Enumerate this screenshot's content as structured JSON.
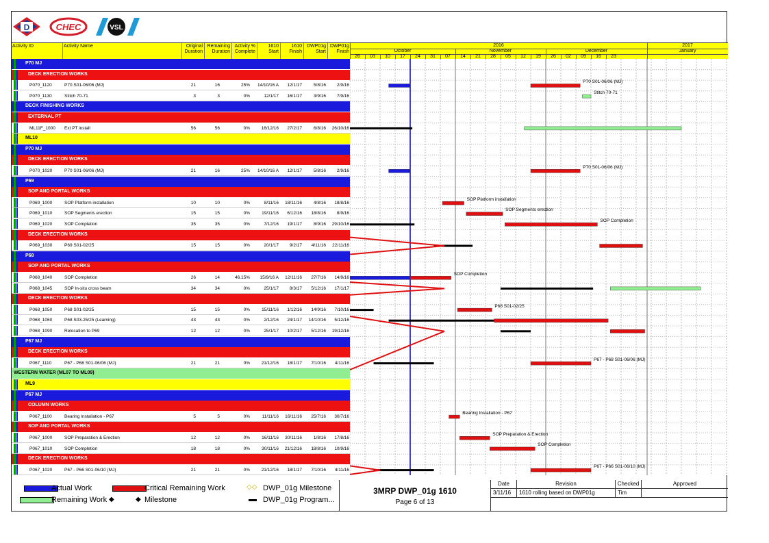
{
  "logos": {
    "d": "D",
    "hec": "CHEC",
    "vsl": "VSL"
  },
  "columns": {
    "activity_id": "Activity ID",
    "activity_name": "Activity Name",
    "orig_dur": [
      "Original",
      "Duration"
    ],
    "rem_dur": [
      "Remaining",
      "Duration"
    ],
    "pct": [
      "Activity %",
      "Complete"
    ],
    "s1610": [
      "1610",
      "Start"
    ],
    "f1610": [
      "1610",
      "Finish"
    ],
    "sdwp": [
      "DWP01g",
      "Start"
    ],
    "fdwp": [
      "DWP01g",
      "Finish"
    ]
  },
  "timescale": {
    "years": [
      "2016",
      "2017"
    ],
    "months": [
      "October",
      "November",
      "December",
      "January"
    ],
    "weeks": [
      "26",
      "03",
      "10",
      "17",
      "24",
      "31",
      "07",
      "14",
      "21",
      "28",
      "05",
      "12",
      "19",
      "26",
      "02",
      "09",
      "16",
      "23"
    ]
  },
  "colors": {
    "actual": "#1a1adc",
    "critical": "#e01010",
    "remaining": "#90ee90",
    "program": "#000000",
    "wbs_blue": "#1a1adc",
    "wbs_red": "#ee1111",
    "wbs_yellow": "#ffff00",
    "wbs_green": "#90ee90",
    "data_date": "#0000cc"
  },
  "rows": [
    {
      "type": "wbs",
      "color": "blue",
      "label": "P70 MJ"
    },
    {
      "type": "wbs",
      "color": "red",
      "label": "DECK ERECTION WORKS"
    },
    {
      "type": "act",
      "id": "P070_1120",
      "name": "P70 S01-06/06 (MJ)",
      "od": "21",
      "rd": "16",
      "pct": "25%",
      "s1610": "14/10/16 A",
      "f1610": "12/1/17",
      "sdwp": "5/8/16",
      "fdwp": "2/9/16"
    },
    {
      "type": "act",
      "id": "P070_1130",
      "name": "Stitch 70-71",
      "od": "3",
      "rd": "3",
      "pct": "0%",
      "s1610": "12/1/17",
      "f1610": "16/1/17",
      "sdwp": "3/9/16",
      "fdwp": "7/9/16"
    },
    {
      "type": "wbs",
      "color": "blue",
      "label": "DECK FINISHING WORKS"
    },
    {
      "type": "wbs",
      "color": "red",
      "label": "EXTERNAL PT"
    },
    {
      "type": "act",
      "id": "ML11F_1000",
      "name": "Ext PT install",
      "od": "56",
      "rd": "56",
      "pct": "0%",
      "s1610": "16/12/16",
      "f1610": "27/2/17",
      "sdwp": "6/8/16",
      "fdwp": "26/10/16"
    },
    {
      "type": "wbs",
      "color": "yellow",
      "label": "ML10"
    },
    {
      "type": "wbs",
      "color": "blue",
      "label": "P70 MJ"
    },
    {
      "type": "wbs",
      "color": "red",
      "label": "DECK ERECTION WORKS"
    },
    {
      "type": "act",
      "id": "P070_1020",
      "name": "P70 S01-06/06 (MJ)",
      "od": "21",
      "rd": "16",
      "pct": "25%",
      "s1610": "14/10/16 A",
      "f1610": "12/1/17",
      "sdwp": "5/8/16",
      "fdwp": "2/9/16"
    },
    {
      "type": "wbs",
      "color": "blue",
      "label": "P69"
    },
    {
      "type": "wbs",
      "color": "red",
      "label": "SOP AND PORTAL WORKS"
    },
    {
      "type": "act",
      "id": "P069_1000",
      "name": "SOP Platform installation",
      "od": "10",
      "rd": "10",
      "pct": "0%",
      "s1610": "8/11/16",
      "f1610": "18/11/16",
      "sdwp": "4/8/16",
      "fdwp": "18/8/16"
    },
    {
      "type": "act",
      "id": "P069_1010",
      "name": "SOP Segments erection",
      "od": "15",
      "rd": "15",
      "pct": "0%",
      "s1610": "19/11/16",
      "f1610": "6/12/16",
      "sdwp": "18/8/16",
      "fdwp": "8/9/16"
    },
    {
      "type": "act",
      "id": "P069_1020",
      "name": "SOP Completion",
      "od": "35",
      "rd": "35",
      "pct": "0%",
      "s1610": "7/12/16",
      "f1610": "19/1/17",
      "sdwp": "8/9/16",
      "fdwp": "29/10/16"
    },
    {
      "type": "wbs",
      "color": "red",
      "label": "DECK ERECTION WORKS"
    },
    {
      "type": "act",
      "id": "P069_1030",
      "name": "P69 S01-02/25",
      "od": "15",
      "rd": "15",
      "pct": "0%",
      "s1610": "20/1/17",
      "f1610": "9/2/17",
      "sdwp": "4/11/16",
      "fdwp": "22/11/16"
    },
    {
      "type": "wbs",
      "color": "blue",
      "label": "P68"
    },
    {
      "type": "wbs",
      "color": "red",
      "label": "SOP AND PORTAL WORKS"
    },
    {
      "type": "act",
      "id": "P068_1040",
      "name": "SOP Completion",
      "od": "26",
      "rd": "14",
      "pct": "46.15%",
      "s1610": "15/9/16 A",
      "f1610": "12/11/16",
      "sdwp": "27/7/16",
      "fdwp": "14/9/16"
    },
    {
      "type": "act",
      "id": "P068_1045",
      "name": "SOP In-situ cross beam",
      "od": "34",
      "rd": "34",
      "pct": "0%",
      "s1610": "25/1/17",
      "f1610": "8/3/17",
      "sdwp": "5/12/16",
      "fdwp": "17/1/17"
    },
    {
      "type": "wbs",
      "color": "red",
      "label": "DECK ERECTION WORKS"
    },
    {
      "type": "act",
      "id": "P068_1050",
      "name": "P68 S01-02/25",
      "od": "15",
      "rd": "15",
      "pct": "0%",
      "s1610": "15/11/16",
      "f1610": "1/12/16",
      "sdwp": "14/9/16",
      "fdwp": "7/10/16"
    },
    {
      "type": "act",
      "id": "P068_1060",
      "name": "P68 S03-25/25 (Learning)",
      "od": "43",
      "rd": "43",
      "pct": "0%",
      "s1610": "2/12/16",
      "f1610": "24/1/17",
      "sdwp": "14/10/16",
      "fdwp": "5/12/16"
    },
    {
      "type": "act",
      "id": "P068_1090",
      "name": "Relocation to P69",
      "od": "12",
      "rd": "12",
      "pct": "0%",
      "s1610": "25/1/17",
      "f1610": "10/2/17",
      "sdwp": "5/12/16",
      "fdwp": "19/12/16"
    },
    {
      "type": "wbs",
      "color": "blue",
      "label": "P67 MJ"
    },
    {
      "type": "wbs",
      "color": "red",
      "label": "DECK ERECTION WORKS"
    },
    {
      "type": "act",
      "id": "P067_1110",
      "name": "P67 - P68 S01-06/06 (MJ)",
      "od": "21",
      "rd": "21",
      "pct": "0%",
      "s1610": "21/12/16",
      "f1610": "18/1/17",
      "sdwp": "7/10/16",
      "fdwp": "4/11/16"
    },
    {
      "type": "wbs",
      "color": "green",
      "label": "WESTERN WATER (ML07 TO ML09)"
    },
    {
      "type": "wbs",
      "color": "yellow",
      "label": "ML9"
    },
    {
      "type": "wbs",
      "color": "blue",
      "label": "P67 MJ"
    },
    {
      "type": "wbs",
      "color": "red",
      "label": "COLUMN WORKS"
    },
    {
      "type": "act",
      "id": "P067_1100",
      "name": "Bearing Installation - P67",
      "od": "5",
      "rd": "5",
      "pct": "0%",
      "s1610": "11/11/16",
      "f1610": "16/11/16",
      "sdwp": "25/7/16",
      "fdwp": "30/7/16"
    },
    {
      "type": "wbs",
      "color": "red",
      "label": "SOP AND PORTAL WORKS"
    },
    {
      "type": "act",
      "id": "P067_1000",
      "name": "SOP Preparation & Erection",
      "od": "12",
      "rd": "12",
      "pct": "0%",
      "s1610": "16/11/16",
      "f1610": "30/11/16",
      "sdwp": "1/8/16",
      "fdwp": "17/8/16"
    },
    {
      "type": "act",
      "id": "P067_1010",
      "name": "SOP Completion",
      "od": "18",
      "rd": "18",
      "pct": "0%",
      "s1610": "30/11/16",
      "f1610": "21/12/16",
      "sdwp": "18/8/16",
      "fdwp": "10/9/16"
    },
    {
      "type": "wbs",
      "color": "red",
      "label": "DECK ERECTION WORKS"
    },
    {
      "type": "act",
      "id": "P067_1020",
      "name": "P67 - P66 S01-06/10 (MJ)",
      "od": "21",
      "rd": "21",
      "pct": "0%",
      "s1610": "21/12/16",
      "f1610": "18/1/17",
      "sdwp": "7/10/16",
      "fdwp": "4/11/16"
    }
  ],
  "bars": [
    {
      "row": 2,
      "kind": "actual",
      "start": "14/10/16",
      "finish": "24/10/16"
    },
    {
      "row": 2,
      "kind": "critical",
      "start": "19/12/16",
      "finish": "11/1/17",
      "label": "P70 S01-06/06 (MJ)"
    },
    {
      "row": 3,
      "kind": "remaining",
      "start": "12/1/17",
      "finish": "16/1/17",
      "label": "Stitch 70-71"
    },
    {
      "row": 6,
      "kind": "program",
      "start": "26/9/16",
      "finish": "25/10/16"
    },
    {
      "row": 6,
      "kind": "remaining",
      "start": "16/12/16",
      "finish": "27/2/17"
    },
    {
      "row": 10,
      "kind": "actual",
      "start": "14/10/16",
      "finish": "24/10/16"
    },
    {
      "row": 10,
      "kind": "critical",
      "start": "19/12/16",
      "finish": "11/1/17",
      "label": "P70 S01-06/06 (MJ)"
    },
    {
      "row": 13,
      "kind": "critical",
      "start": "8/11/16",
      "finish": "18/11/16",
      "label": "SOP Platform installation"
    },
    {
      "row": 14,
      "kind": "critical",
      "start": "19/11/16",
      "finish": "6/12/16",
      "label": "SOP Segments erection"
    },
    {
      "row": 15,
      "kind": "program",
      "start": "26/9/16",
      "finish": "26/10/16"
    },
    {
      "row": 15,
      "kind": "critical",
      "start": "7/12/16",
      "finish": "19/1/17",
      "label": "SOP Completion"
    },
    {
      "row": 17,
      "kind": "program",
      "start": "4/11/16",
      "finish": "22/11/16"
    },
    {
      "row": 17,
      "kind": "critical",
      "start": "20/1/17",
      "finish": "9/2/17"
    },
    {
      "row": 20,
      "kind": "actual",
      "start": "26/9/16",
      "finish": "24/10/16"
    },
    {
      "row": 20,
      "kind": "critical",
      "start": "24/10/16",
      "finish": "12/11/16",
      "label": "SOP Completion"
    },
    {
      "row": 21,
      "kind": "program",
      "start": "5/12/16",
      "finish": "17/1/17"
    },
    {
      "row": 21,
      "kind": "remaining",
      "start": "25/1/17",
      "finish": "8/3/17"
    },
    {
      "row": 23,
      "kind": "program",
      "start": "26/9/16",
      "finish": "7/10/16"
    },
    {
      "row": 23,
      "kind": "critical",
      "start": "15/11/16",
      "finish": "1/12/16",
      "label": "P68 S01-02/25"
    },
    {
      "row": 24,
      "kind": "program",
      "start": "14/10/16",
      "finish": "5/12/16"
    },
    {
      "row": 24,
      "kind": "critical",
      "start": "2/12/16",
      "finish": "24/1/17"
    },
    {
      "row": 25,
      "kind": "program",
      "start": "5/12/16",
      "finish": "19/12/16"
    },
    {
      "row": 25,
      "kind": "critical",
      "start": "25/1/17",
      "finish": "10/2/17"
    },
    {
      "row": 28,
      "kind": "program",
      "start": "7/10/16",
      "finish": "4/11/16"
    },
    {
      "row": 28,
      "kind": "critical",
      "start": "19/12/16",
      "finish": "16/1/17",
      "label": "P67 - P68 S01-06/06 (MJ)"
    },
    {
      "row": 33,
      "kind": "critical",
      "start": "11/11/16",
      "finish": "16/11/16",
      "label": "Bearing Installation - P67"
    },
    {
      "row": 35,
      "kind": "critical",
      "start": "16/11/16",
      "finish": "30/11/16",
      "label": "SOP Preparation & Erection"
    },
    {
      "row": 36,
      "kind": "critical",
      "start": "30/11/16",
      "finish": "21/12/16",
      "label": "SOP Completion"
    },
    {
      "row": 38,
      "kind": "program",
      "start": "7/10/16",
      "finish": "4/11/16"
    },
    {
      "row": 38,
      "kind": "critical",
      "start": "19/12/16",
      "finish": "16/1/17",
      "label": "P67 - P66 S01-06/10 (MJ)"
    }
  ],
  "legend": {
    "actual": "Actual Work",
    "critical": "Critical Remaining Work",
    "milestone_dwp": "DWP_01g Milestone",
    "remaining": "Remaining Work",
    "milestone": "Milestone",
    "program": "DWP_01g Program..."
  },
  "title_block": {
    "title": "3MRP DWP_01g 1610",
    "page": "Page 6 of 13"
  },
  "revision": {
    "headers": {
      "date": "Date",
      "revision": "Revision",
      "checked": "Checked",
      "approved": "Approved"
    },
    "entries": [
      {
        "date": "3/11/16",
        "revision": "1610 rolling based on DWP01g",
        "checked": "Tim",
        "approved": ""
      }
    ]
  }
}
